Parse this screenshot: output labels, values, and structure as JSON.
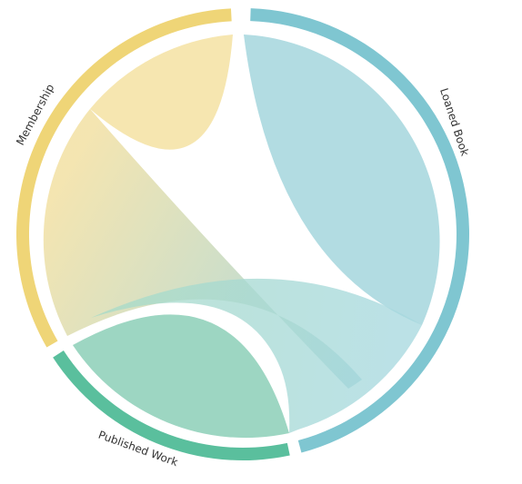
{
  "chart_data": {
    "type": "chord",
    "groups": [
      {
        "name": "Loaned Book",
        "color": "#7fc6d1"
      },
      {
        "name": "Published Work",
        "color": "#5abf9d"
      },
      {
        "name": "Membership",
        "color": "#efd577"
      }
    ],
    "ribbons": [
      {
        "from": "Loaned Book",
        "to": "Loaned Book",
        "fill": "#b2dce2"
      },
      {
        "from": "Membership",
        "to": "Membership",
        "fill": "#f6e6b0"
      },
      {
        "from": "Published Work",
        "to": "Published Work",
        "fill": "#9dd6c2"
      },
      {
        "from": "Membership",
        "to": "Loaned Book"
      },
      {
        "from": "Published Work",
        "to": "Loaned Book"
      }
    ]
  }
}
